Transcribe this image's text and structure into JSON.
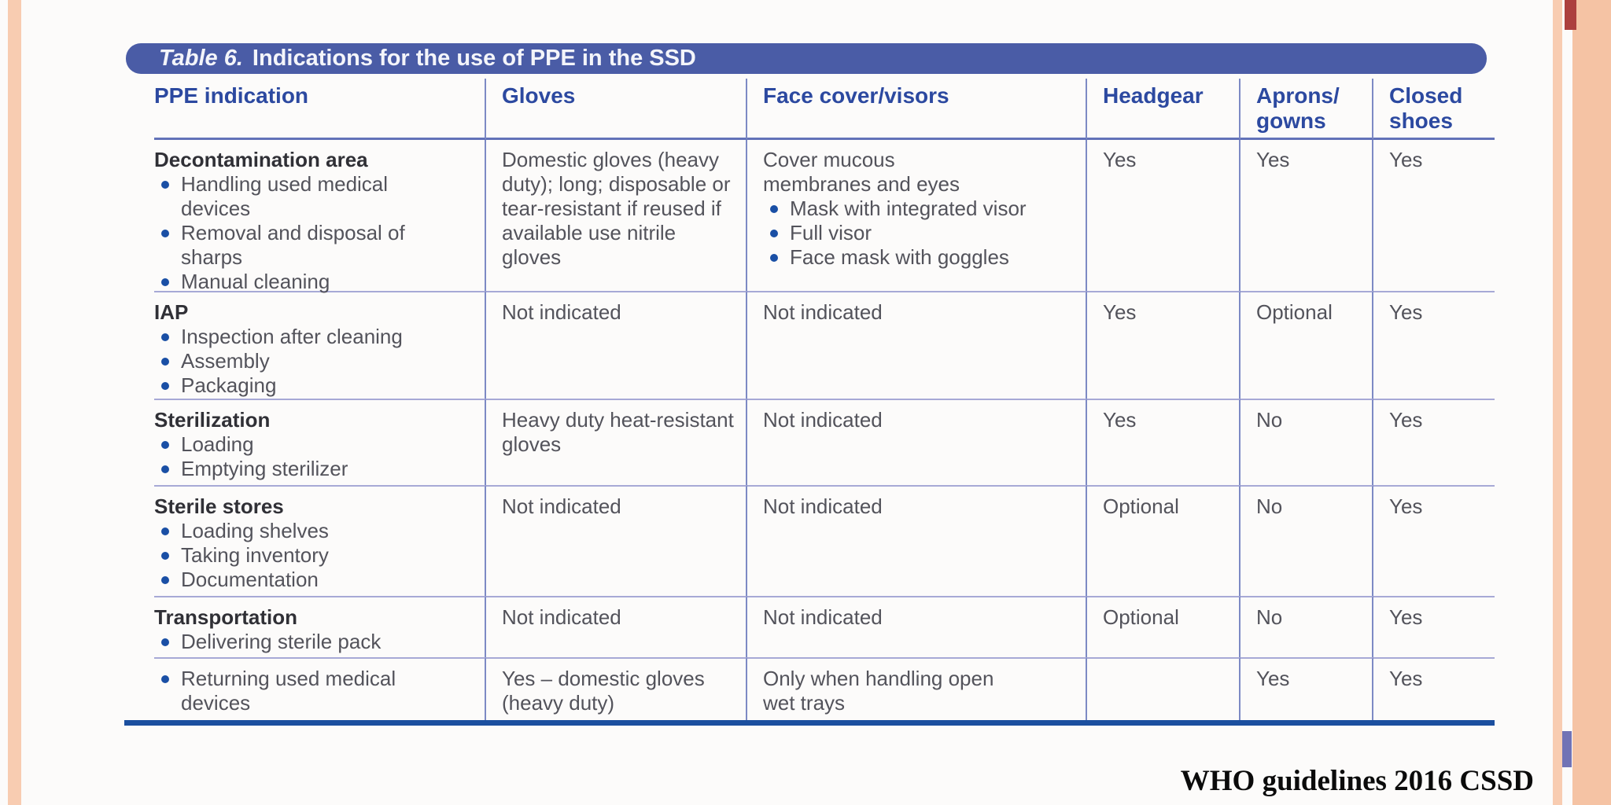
{
  "slide": {
    "footer_text": "WHO guidelines 2016 CSSD"
  },
  "colors": {
    "title_bar_blue": "#4a5ca6",
    "header_text_blue": "#2c49a0",
    "body_text_gray": "#53535b",
    "bullet_blue": "#1a4fa5",
    "bottom_rule_blue": "#1b4f9f",
    "edge_strip_peach": "#f8ccb1",
    "corner_mark_red": "#ac3f3e",
    "corner_mark_purple": "#7173b5"
  },
  "table": {
    "title": {
      "prefix": "Table 6.",
      "rest": "Indications for the use of PPE in the SSD"
    },
    "columns": [
      {
        "lines": [
          "PPE indication",
          ""
        ]
      },
      {
        "lines": [
          "Gloves",
          ""
        ]
      },
      {
        "lines": [
          "Face cover/visors",
          ""
        ]
      },
      {
        "lines": [
          "Headgear",
          ""
        ]
      },
      {
        "lines": [
          "Aprons/",
          "gowns"
        ]
      },
      {
        "lines": [
          "Closed",
          "shoes"
        ]
      }
    ],
    "rows": [
      {
        "indication": {
          "title": "Decontamination area",
          "bullets": [
            "Handling used medical devices",
            "Removal and disposal of sharps",
            "Manual cleaning"
          ]
        },
        "gloves": "Domestic gloves (heavy duty); long; disposable or tear-resistant if reused if available use nitrile gloves",
        "face": {
          "text": "Cover mucous membranes and eyes",
          "bullets": [
            "Mask with integrated visor",
            "Full visor",
            "Face mask with goggles"
          ]
        },
        "headgear": "Yes",
        "aprons_gowns": "Yes",
        "closed_shoes": "Yes"
      },
      {
        "indication": {
          "title": "IAP",
          "bullets": [
            "Inspection after cleaning",
            "Assembly",
            "Packaging"
          ]
        },
        "gloves": "Not indicated",
        "face": {
          "text": "Not indicated",
          "bullets": []
        },
        "headgear": "Yes",
        "aprons_gowns": "Optional",
        "closed_shoes": "Yes"
      },
      {
        "indication": {
          "title": "Sterilization",
          "bullets": [
            "Loading",
            "Emptying sterilizer"
          ]
        },
        "gloves": "Heavy duty heat-resistant gloves",
        "face": {
          "text": "Not indicated",
          "bullets": []
        },
        "headgear": "Yes",
        "aprons_gowns": "No",
        "closed_shoes": "Yes"
      },
      {
        "indication": {
          "title": "Sterile stores",
          "bullets": [
            "Loading shelves",
            "Taking inventory",
            "Documentation"
          ]
        },
        "gloves": "Not indicated",
        "face": {
          "text": "Not indicated",
          "bullets": []
        },
        "headgear": "Optional",
        "aprons_gowns": "No",
        "closed_shoes": "Yes"
      },
      {
        "indication": {
          "title": "Transportation",
          "bullets": [
            "Delivering sterile pack"
          ]
        },
        "gloves": "Not indicated",
        "face": {
          "text": "Not indicated",
          "bullets": []
        },
        "headgear": "Optional",
        "aprons_gowns": "No",
        "closed_shoes": "Yes"
      },
      {
        "indication": {
          "title": "",
          "bullets": [
            "Returning used medical devices"
          ]
        },
        "gloves": "Yes – domestic gloves (heavy duty)",
        "face": {
          "text": "Only when handling open wet trays",
          "bullets": []
        },
        "headgear": "",
        "aprons_gowns": "Yes",
        "closed_shoes": "Yes"
      }
    ]
  }
}
